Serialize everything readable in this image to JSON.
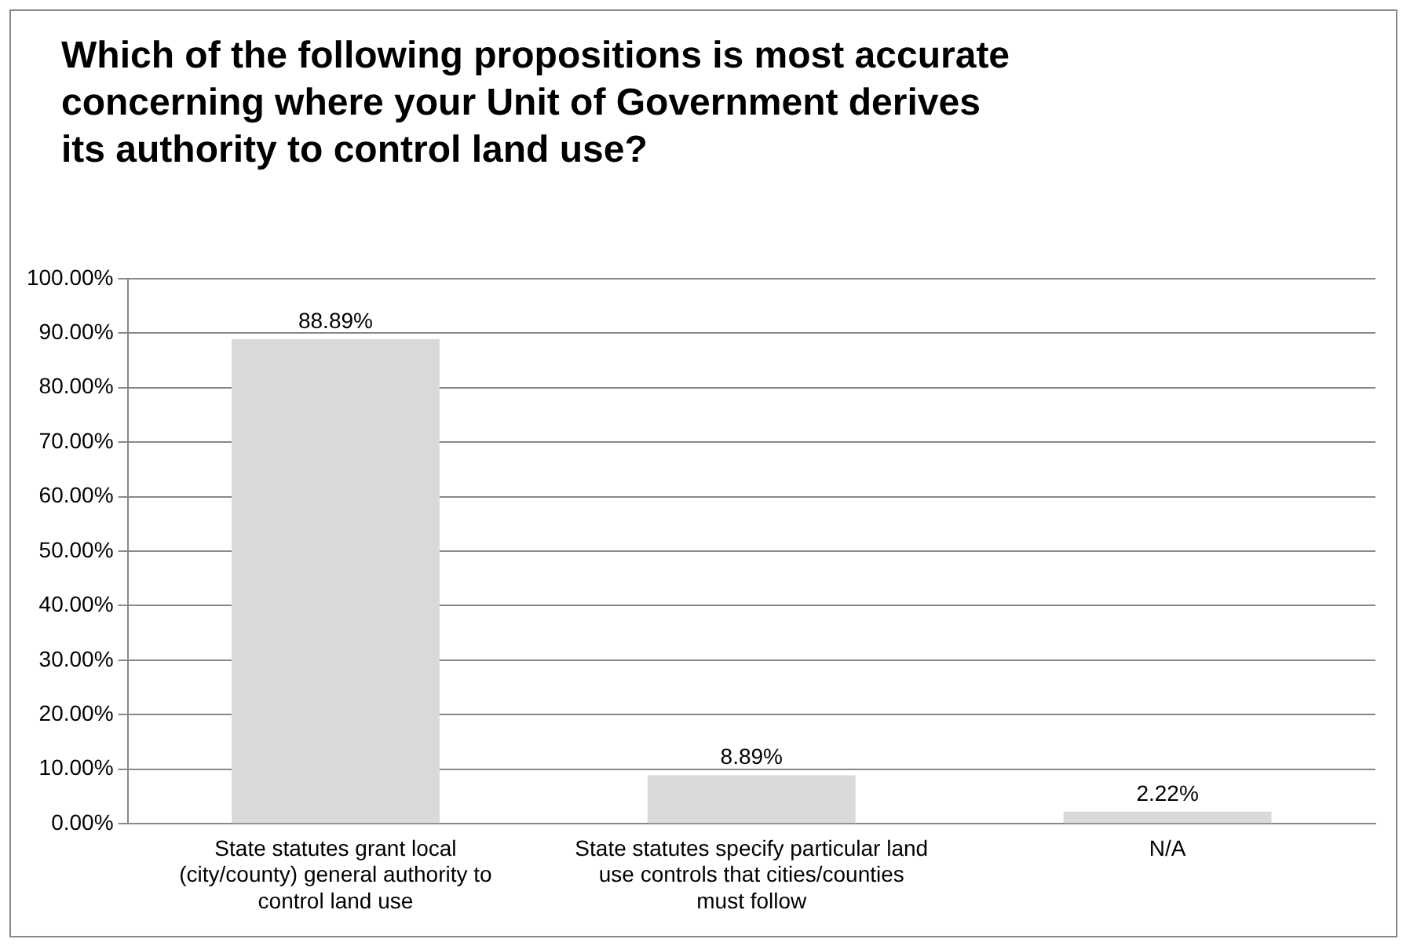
{
  "chart_data": {
    "type": "bar",
    "title": "Which of the following propositions is most accurate concerning where your Unit of Government derives its authority to control land use?",
    "categories": [
      "State statutes grant local (city/county) general authority to control land use",
      "State statutes specify particular land use controls that cities/counties must follow",
      "N/A"
    ],
    "values": [
      88.89,
      8.89,
      2.22
    ],
    "value_labels": [
      "88.89%",
      "8.89%",
      "2.22%"
    ],
    "color": "#d9d9d9",
    "ylim": [
      0,
      100
    ],
    "yticks": [
      {
        "value": 0,
        "label": "0.00%"
      },
      {
        "value": 10,
        "label": "10.00%"
      },
      {
        "value": 20,
        "label": "20.00%"
      },
      {
        "value": 30,
        "label": "30.00%"
      },
      {
        "value": 40,
        "label": "40.00%"
      },
      {
        "value": 50,
        "label": "50.00%"
      },
      {
        "value": 60,
        "label": "60.00%"
      },
      {
        "value": 70,
        "label": "70.00%"
      },
      {
        "value": 80,
        "label": "80.00%"
      },
      {
        "value": 90,
        "label": "90.00%"
      },
      {
        "value": 100,
        "label": "100.00%"
      }
    ],
    "grid": "y",
    "legend": false
  }
}
